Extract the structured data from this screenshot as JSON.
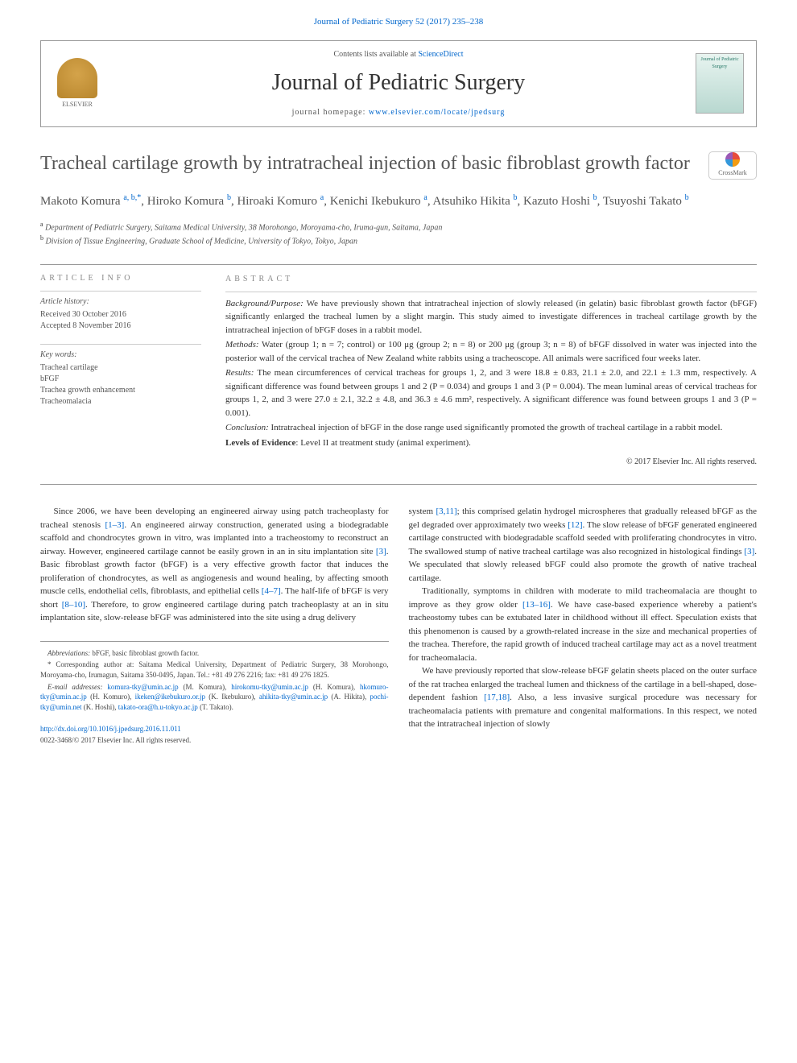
{
  "journal_ref": "Journal of Pediatric Surgery 52 (2017) 235–238",
  "header": {
    "contents_prefix": "Contents lists available at ",
    "contents_link": "ScienceDirect",
    "journal_name": "Journal of Pediatric Surgery",
    "homepage_prefix": "journal homepage: ",
    "homepage_url": "www.elsevier.com/locate/jpedsurg",
    "elsevier_label": "ELSEVIER",
    "cover_label": "Journal of Pediatric Surgery"
  },
  "crossmark_label": "CrossMark",
  "title": "Tracheal cartilage growth by intratracheal injection of basic fibroblast growth factor",
  "authors_html": "Makoto Komura <sup>a, b,*</sup>, Hiroko Komura <sup>b</sup>, Hiroaki Komuro <sup>a</sup>, Kenichi Ikebukuro <sup>a</sup>, Atsuhiko Hikita <sup>b</sup>, Kazuto Hoshi <sup>b</sup>, Tsuyoshi Takato <sup>b</sup>",
  "affiliations": {
    "a": "Department of Pediatric Surgery, Saitama Medical University, 38 Morohongo, Moroyama-cho, Iruma-gun, Saitama, Japan",
    "b": "Division of Tissue Engineering, Graduate School of Medicine, University of Tokyo, Tokyo, Japan"
  },
  "article_info": {
    "heading": "ARTICLE INFO",
    "history_label": "Article history:",
    "received": "Received 30 October 2016",
    "accepted": "Accepted 8 November 2016",
    "keywords_label": "Key words:",
    "keywords": [
      "Tracheal cartilage",
      "bFGF",
      "Trachea growth enhancement",
      "Tracheomalacia"
    ]
  },
  "abstract": {
    "heading": "ABSTRACT",
    "background_label": "Background/Purpose:",
    "background": "We have previously shown that intratracheal injection of slowly released (in gelatin) basic fibroblast growth factor (bFGF) significantly enlarged the tracheal lumen by a slight margin. This study aimed to investigate differences in tracheal cartilage growth by the intratracheal injection of bFGF doses in a rabbit model.",
    "methods_label": "Methods:",
    "methods": "Water (group 1; n = 7; control) or 100 μg (group 2; n = 8) or 200 μg (group 3; n = 8) of bFGF dissolved in water was injected into the posterior wall of the cervical trachea of New Zealand white rabbits using a tracheoscope. All animals were sacrificed four weeks later.",
    "results_label": "Results:",
    "results": "The mean circumferences of cervical tracheas for groups 1, 2, and 3 were 18.8 ± 0.83, 21.1 ± 2.0, and 22.1 ± 1.3 mm, respectively. A significant difference was found between groups 1 and 2 (P = 0.034) and groups 1 and 3 (P = 0.004). The mean luminal areas of cervical tracheas for groups 1, 2, and 3 were 27.0 ± 2.1, 32.2 ± 4.8, and 36.3 ± 4.6 mm², respectively. A significant difference was found between groups 1 and 3 (P = 0.001).",
    "conclusion_label": "Conclusion:",
    "conclusion": "Intratracheal injection of bFGF in the dose range used significantly promoted the growth of tracheal cartilage in a rabbit model.",
    "evidence_label": "Levels of Evidence",
    "evidence": ": Level II at treatment study (animal experiment).",
    "copyright": "© 2017 Elsevier Inc. All rights reserved."
  },
  "body": {
    "col1": {
      "p1_a": "Since 2006, we have been developing an engineered airway using patch tracheoplasty for tracheal stenosis ",
      "p1_ref1": "[1–3]",
      "p1_b": ". An engineered airway construction, generated using a biodegradable scaffold and chondrocytes grown in vitro, was implanted into a tracheostomy to reconstruct an airway. However, engineered cartilage cannot be easily grown in an in situ implantation site ",
      "p1_ref2": "[3]",
      "p1_c": ". Basic fibroblast growth factor (bFGF) is a very effective growth factor that induces the proliferation of chondrocytes, as well as angiogenesis and wound healing, by affecting smooth muscle cells, endothelial cells, fibroblasts, and epithelial cells ",
      "p1_ref3": "[4–7]",
      "p1_d": ". The half-life of bFGF is very short ",
      "p1_ref4": "[8–10]",
      "p1_e": ". Therefore, to grow engineered cartilage during patch tracheoplasty at an in situ implantation site, slow-release bFGF was administered into the site using a drug delivery"
    },
    "col2": {
      "p1_a": "system ",
      "p1_ref1": "[3,11]",
      "p1_b": "; this comprised gelatin hydrogel microspheres that gradually released bFGF as the gel degraded over approximately two weeks ",
      "p1_ref2": "[12]",
      "p1_c": ". The slow release of bFGF generated engineered cartilage constructed with biodegradable scaffold seeded with proliferating chondrocytes in vitro. The swallowed stump of native tracheal cartilage was also recognized in histological findings ",
      "p1_ref3": "[3]",
      "p1_d": ". We speculated that slowly released bFGF could also promote the growth of native tracheal cartilage.",
      "p2_a": "Traditionally, symptoms in children with moderate to mild tracheomalacia are thought to improve as they grow older ",
      "p2_ref1": "[13–16]",
      "p2_b": ". We have case-based experience whereby a patient's tracheostomy tubes can be extubated later in childhood without ill effect. Speculation exists that this phenomenon is caused by a growth-related increase in the size and mechanical properties of the trachea. Therefore, the rapid growth of induced tracheal cartilage may act as a novel treatment for tracheomalacia.",
      "p3_a": "We have previously reported that slow-release bFGF gelatin sheets placed on the outer surface of the rat trachea enlarged the tracheal lumen and thickness of the cartilage in a bell-shaped, dose-dependent fashion ",
      "p3_ref1": "[17,18]",
      "p3_b": ". Also, a less invasive surgical procedure was necessary for tracheomalacia patients with premature and congenital malformations. In this respect, we noted that the intratracheal injection of slowly"
    }
  },
  "footnotes": {
    "abbrev_label": "Abbreviations:",
    "abbrev": "bFGF, basic fibroblast growth factor.",
    "corresp_marker": "*",
    "corresp": "Corresponding author at: Saitama Medical University, Department of Pediatric Surgery, 38 Morohongo, Moroyama-cho, Irumagun, Saitama 350-0495, Japan. Tel.: +81 49 276 2216; fax: +81 49 276 1825.",
    "email_label": "E-mail addresses:",
    "emails": "komura-tky@umin.ac.jp (M. Komura), hirokomu-tky@umin.ac.jp (H. Komura), hkomuro-tky@umin.ac.jp (H. Komuro), ikeken@ikebukuro.or.jp (K. Ikebukuro), ahikita-tky@umin.ac.jp (A. Hikita), pochi-tky@umin.net (K. Hoshi), takato-ora@h.u-tokyo.ac.jp (T. Takato)."
  },
  "doi": {
    "url": "http://dx.doi.org/10.1016/j.jpedsurg.2016.11.011",
    "issn": "0022-3468/© 2017 Elsevier Inc. All rights reserved."
  },
  "colors": {
    "link": "#0066cc",
    "text": "#333333",
    "muted": "#555555",
    "rule": "#999999"
  }
}
